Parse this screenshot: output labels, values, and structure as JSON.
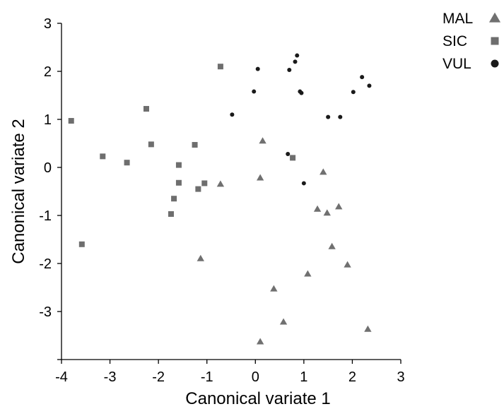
{
  "chart_data": {
    "type": "scatter",
    "title": "",
    "xlabel": "Canonical variate 1",
    "ylabel": "Canonical variate 2",
    "xlim": [
      -4,
      3
    ],
    "ylim": [
      -4,
      3
    ],
    "xticks": [
      -4,
      -3,
      -2,
      -1,
      0,
      1,
      2,
      3
    ],
    "yticks": [
      -3,
      -2,
      -1,
      0,
      1,
      2,
      3
    ],
    "grid": false,
    "legend_position": "top-right",
    "series": [
      {
        "name": "MAL",
        "marker": "triangle",
        "color": "#707070",
        "points": [
          [
            0.15,
            0.55
          ],
          [
            0.1,
            -0.22
          ],
          [
            -0.72,
            -0.35
          ],
          [
            1.4,
            -0.1
          ],
          [
            1.28,
            -0.87
          ],
          [
            1.48,
            -0.95
          ],
          [
            1.72,
            -0.82
          ],
          [
            1.58,
            -1.65
          ],
          [
            1.9,
            -2.03
          ],
          [
            -1.13,
            -1.9
          ],
          [
            1.08,
            -2.22
          ],
          [
            0.38,
            -2.53
          ],
          [
            0.58,
            -3.22
          ],
          [
            2.32,
            -3.37
          ],
          [
            0.1,
            -3.63
          ]
        ]
      },
      {
        "name": "SIC",
        "marker": "square",
        "color": "#6e6e6e",
        "points": [
          [
            -0.72,
            2.1
          ],
          [
            -2.25,
            1.22
          ],
          [
            -3.8,
            0.97
          ],
          [
            -2.15,
            0.48
          ],
          [
            -1.25,
            0.47
          ],
          [
            -3.15,
            0.23
          ],
          [
            -2.65,
            0.1
          ],
          [
            -1.58,
            0.05
          ],
          [
            0.77,
            0.2
          ],
          [
            -1.58,
            -0.32
          ],
          [
            -1.05,
            -0.33
          ],
          [
            -1.18,
            -0.45
          ],
          [
            -1.68,
            -0.65
          ],
          [
            -1.74,
            -0.97
          ],
          [
            -3.58,
            -1.6
          ]
        ]
      },
      {
        "name": "VUL",
        "marker": "circle",
        "color": "#1a1a1a",
        "points": [
          [
            0.86,
            2.33
          ],
          [
            0.82,
            2.2
          ],
          [
            0.05,
            2.05
          ],
          [
            0.7,
            2.03
          ],
          [
            2.2,
            1.88
          ],
          [
            2.35,
            1.7
          ],
          [
            -0.03,
            1.58
          ],
          [
            0.92,
            1.58
          ],
          [
            0.95,
            1.55
          ],
          [
            2.02,
            1.57
          ],
          [
            -0.48,
            1.1
          ],
          [
            1.5,
            1.05
          ],
          [
            1.75,
            1.05
          ],
          [
            0.67,
            0.28
          ],
          [
            1.0,
            -0.33
          ]
        ]
      }
    ]
  }
}
